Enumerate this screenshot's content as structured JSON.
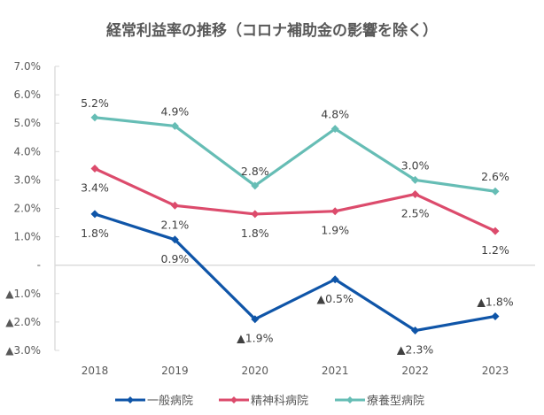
{
  "chart_data": {
    "type": "line",
    "title": "経常利益率の推移（コロナ補助金の影響を除く）",
    "xlabel": "",
    "ylabel": "",
    "categories": [
      "2018",
      "2019",
      "2020",
      "2021",
      "2022",
      "2023"
    ],
    "ylim": [
      -3.0,
      7.0
    ],
    "yticks": [
      7.0,
      6.0,
      5.0,
      4.0,
      3.0,
      2.0,
      1.0,
      0,
      -1.0,
      -2.0,
      -3.0
    ],
    "ytick_labels": [
      "7.0%",
      "6.0%",
      "5.0%",
      "4.0%",
      "3.0%",
      "2.0%",
      "1.0%",
      "-",
      "▲1.0%",
      "▲2.0%",
      "▲3.0%"
    ],
    "grid": false,
    "legend_position": "bottom",
    "series": [
      {
        "name": "一般病院",
        "color": "#0F55A8",
        "values": [
          1.8,
          0.9,
          -1.9,
          -0.5,
          -2.3,
          -1.8
        ],
        "labels": [
          "1.8%",
          "0.9%",
          "▲1.9%",
          "▲0.5%",
          "▲2.3%",
          "▲1.8%"
        ],
        "label_pos": [
          "below",
          "below",
          "below",
          "below",
          "below",
          "above"
        ]
      },
      {
        "name": "精神科病院",
        "color": "#DC4B6C",
        "values": [
          3.4,
          2.1,
          1.8,
          1.9,
          2.5,
          1.2
        ],
        "labels": [
          "3.4%",
          "2.1%",
          "1.8%",
          "1.9%",
          "2.5%",
          "1.2%"
        ],
        "label_pos": [
          "below",
          "below",
          "below",
          "below",
          "below",
          "below"
        ]
      },
      {
        "name": "療養型病院",
        "color": "#66BDB5",
        "values": [
          5.2,
          4.9,
          2.8,
          4.8,
          3.0,
          2.6
        ],
        "labels": [
          "5.2%",
          "4.9%",
          "2.8%",
          "4.8%",
          "3.0%",
          "2.6%"
        ],
        "label_pos": [
          "above",
          "above",
          "above",
          "above",
          "above",
          "above"
        ]
      }
    ]
  }
}
